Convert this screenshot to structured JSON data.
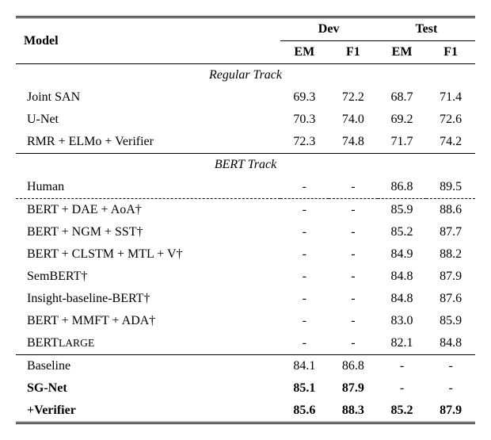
{
  "headers": {
    "model": "Model",
    "dev": "Dev",
    "test": "Test",
    "em1": "EM",
    "f1_1": "F1",
    "em2": "EM",
    "f1_2": "F1"
  },
  "tracks": {
    "regular": "Regular Track",
    "bert": "BERT Track"
  },
  "regular_rows": [
    {
      "name": "Joint SAN",
      "dev_em": "69.3",
      "dev_f1": "72.2",
      "test_em": "68.7",
      "test_f1": "71.4"
    },
    {
      "name": "U-Net",
      "dev_em": "70.3",
      "dev_f1": "74.0",
      "test_em": "69.2",
      "test_f1": "72.6"
    },
    {
      "name": "RMR + ELMo + Verifier",
      "dev_em": "72.3",
      "dev_f1": "74.8",
      "test_em": "71.7",
      "test_f1": "74.2"
    }
  ],
  "bert_human": {
    "name": "Human",
    "dev_em": "-",
    "dev_f1": "-",
    "test_em": "86.8",
    "test_f1": "89.5"
  },
  "bert_rows": [
    {
      "name": "BERT + DAE + AoA†",
      "dev_em": "-",
      "dev_f1": "-",
      "test_em": "85.9",
      "test_f1": "88.6"
    },
    {
      "name": "BERT + NGM + SST†",
      "dev_em": "-",
      "dev_f1": "-",
      "test_em": "85.2",
      "test_f1": "87.7"
    },
    {
      "name": "BERT + CLSTM + MTL + V†",
      "dev_em": "-",
      "dev_f1": "-",
      "test_em": "84.9",
      "test_f1": "88.2"
    },
    {
      "name": "SemBERT†",
      "dev_em": "-",
      "dev_f1": "-",
      "test_em": "84.8",
      "test_f1": "87.9"
    },
    {
      "name": "Insight-baseline-BERT†",
      "dev_em": "-",
      "dev_f1": "-",
      "test_em": "84.8",
      "test_f1": "87.6"
    },
    {
      "name": "BERT + MMFT + ADA†",
      "dev_em": "-",
      "dev_f1": "-",
      "test_em": "83.0",
      "test_f1": "85.9"
    }
  ],
  "bert_large": {
    "prefix": "BERT",
    "suffix": "LARGE",
    "dev_em": "-",
    "dev_f1": "-",
    "test_em": "82.1",
    "test_f1": "84.8"
  },
  "bottom_rows": [
    {
      "name": "Baseline",
      "dev_em": "84.1",
      "dev_f1": "86.8",
      "test_em": "-",
      "test_f1": "-",
      "bold": false
    },
    {
      "name": "SG-Net",
      "dev_em": "85.1",
      "dev_f1": "87.9",
      "test_em": "-",
      "test_f1": "-",
      "bold": true
    },
    {
      "name": "+Verifier",
      "dev_em": "85.6",
      "dev_f1": "88.3",
      "test_em": "85.2",
      "test_f1": "87.9",
      "bold": true
    }
  ]
}
